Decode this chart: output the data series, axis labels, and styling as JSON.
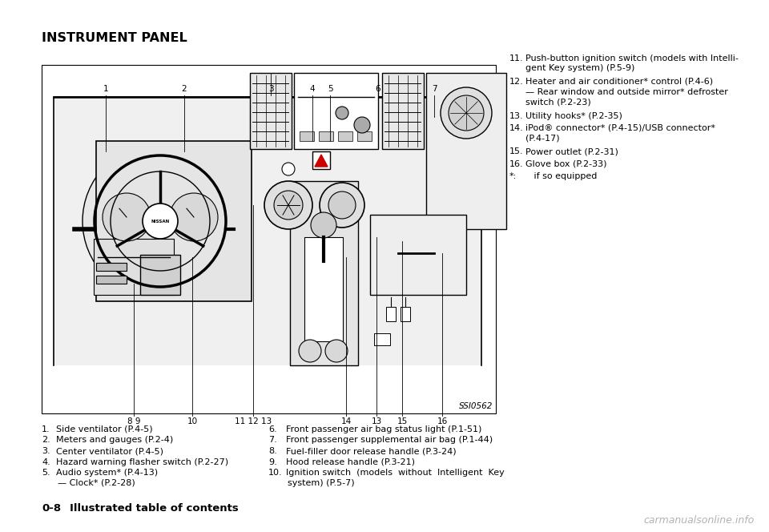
{
  "title": "INSTRUMENT PANEL",
  "bg_color": "#ffffff",
  "ssi_label": "SSI0562",
  "watermark": "carmanualsonline.info",
  "left_col": [
    [
      "1.",
      "Side ventilator (P.4-5)"
    ],
    [
      "2.",
      "Meters and gauges (P.2-4)"
    ],
    [
      "3.",
      "Center ventilator (P.4-5)"
    ],
    [
      "4.",
      "Hazard warning flasher switch (P.2-27)"
    ],
    [
      "5.",
      "Audio system* (P.4-13)",
      "— Clock* (P.2-28)"
    ]
  ],
  "right_col": [
    [
      "6.",
      "Front passenger air bag status light (P.1-51)"
    ],
    [
      "7.",
      "Front passenger supplemental air bag (P.1-44)"
    ],
    [
      "8.",
      "Fuel-filler door release handle (P.3-24)"
    ],
    [
      "9.",
      "Hood release handle (P.3-21)"
    ],
    [
      "10.",
      "Ignition switch  (models  without  Intelligent  Key",
      "system) (P.5-7)"
    ]
  ],
  "far_right_col": [
    [
      "11.",
      "Push-button ignition switch (models with Intelli-",
      "gent Key system) (P.5-9)"
    ],
    [
      "12.",
      "Heater and air conditioner* control (P.4-6)",
      "— Rear window and outside mirror* defroster",
      "switch (P.2-23)"
    ],
    [
      "13.",
      "Utility hooks* (P.2-35)"
    ],
    [
      "14.",
      "iPod® connector* (P.4-15)/USB connector*",
      "(P.4-17)"
    ],
    [
      "15.",
      "Power outlet (P.2-31)"
    ],
    [
      "16.",
      "Glove box (P.2-33)"
    ],
    [
      "*:",
      "   if so equipped"
    ]
  ],
  "footer": "0-8    Illustrated table of contents",
  "text_fs": 8.0,
  "footer_fs": 9.5,
  "title_fs": 11.5
}
